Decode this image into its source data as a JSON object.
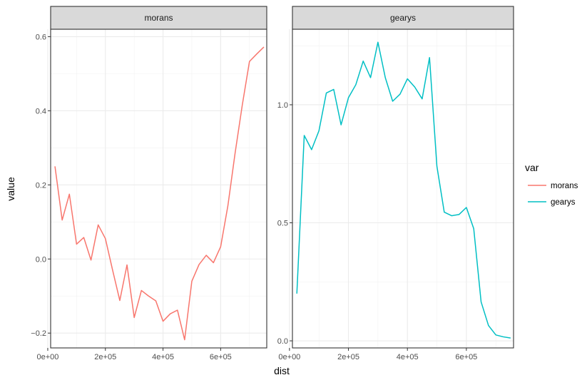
{
  "chart_data": {
    "type": "line",
    "xlabel": "dist",
    "ylabel": "value",
    "legend": {
      "title": "var",
      "placement": "right",
      "entries": [
        {
          "label": "morans",
          "color": "#F8766D"
        },
        {
          "label": "gearys",
          "color": "#00BFC4"
        }
      ]
    },
    "grid": true,
    "panels": [
      {
        "strip": "morans",
        "color": "#F8766D",
        "xlim": [
          10000,
          760000
        ],
        "ylim": [
          -0.24,
          0.62
        ],
        "x_ticks": [
          0,
          200000,
          400000,
          600000
        ],
        "x_tick_labels": [
          "0e+00",
          "2e+05",
          "4e+05",
          "6e+05"
        ],
        "y_ticks": [
          -0.2,
          0.0,
          0.2,
          0.4,
          0.6
        ],
        "y_tick_labels": [
          "−0.2",
          "0.0",
          "0.2",
          "0.4",
          "0.6"
        ],
        "x": [
          25000,
          50000,
          75000,
          100000,
          125000,
          150000,
          175000,
          200000,
          225000,
          250000,
          275000,
          300000,
          325000,
          350000,
          375000,
          400000,
          425000,
          450000,
          475000,
          500000,
          525000,
          550000,
          575000,
          600000,
          625000,
          650000,
          675000,
          700000,
          725000,
          750000
        ],
        "values": [
          0.25,
          0.105,
          0.175,
          0.04,
          0.058,
          -0.003,
          0.092,
          0.055,
          -0.03,
          -0.112,
          -0.016,
          -0.158,
          -0.085,
          -0.1,
          -0.113,
          -0.168,
          -0.148,
          -0.138,
          -0.218,
          -0.06,
          -0.015,
          0.01,
          -0.01,
          0.033,
          0.143,
          0.285,
          0.415,
          0.533,
          0.553,
          0.572
        ]
      },
      {
        "strip": "gearys",
        "color": "#00BFC4",
        "xlim": [
          10000,
          760000
        ],
        "ylim": [
          -0.03,
          1.32
        ],
        "x_ticks": [
          0,
          200000,
          400000,
          600000
        ],
        "x_tick_labels": [
          "0e+00",
          "2e+05",
          "4e+05",
          "6e+05"
        ],
        "y_ticks": [
          0.0,
          0.5,
          1.0
        ],
        "y_tick_labels": [
          "0.0",
          "0.5",
          "1.0"
        ],
        "x": [
          25000,
          50000,
          75000,
          100000,
          125000,
          150000,
          175000,
          200000,
          225000,
          250000,
          275000,
          300000,
          325000,
          350000,
          375000,
          400000,
          425000,
          450000,
          475000,
          500000,
          525000,
          550000,
          575000,
          600000,
          625000,
          650000,
          675000,
          700000,
          725000,
          750000
        ],
        "values": [
          0.2,
          0.87,
          0.81,
          0.89,
          1.05,
          1.065,
          0.915,
          1.03,
          1.085,
          1.185,
          1.115,
          1.265,
          1.115,
          1.015,
          1.045,
          1.11,
          1.075,
          1.025,
          1.2,
          0.74,
          0.545,
          0.53,
          0.535,
          0.565,
          0.475,
          0.165,
          0.065,
          0.025,
          0.017,
          0.012
        ]
      }
    ]
  }
}
